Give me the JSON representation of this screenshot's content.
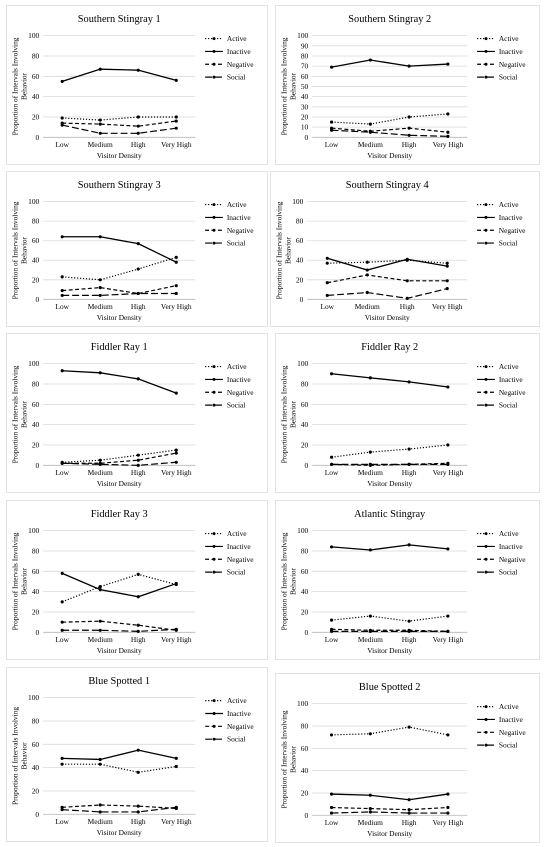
{
  "chart_data": [
    {
      "type": "line",
      "title": "Southern Stingray 1",
      "categories": [
        "Low",
        "Medium",
        "High",
        "Very High"
      ],
      "xlabel": "Visitor Density",
      "ylabel": "Proportion of Intervals Involving Behavior",
      "ylim": [
        0,
        100
      ],
      "yticks": [
        0,
        20,
        40,
        60,
        80,
        100
      ],
      "legend_position": "right",
      "series": [
        {
          "name": "Active",
          "style": "dotted",
          "values": [
            19,
            17,
            20,
            20
          ]
        },
        {
          "name": "Inactive",
          "style": "solid",
          "values": [
            55,
            67,
            66,
            56
          ]
        },
        {
          "name": "Negative",
          "style": "dashed",
          "values": [
            14,
            13,
            11,
            16
          ]
        },
        {
          "name": "Social",
          "style": "longdash",
          "values": [
            12,
            4,
            4,
            9
          ]
        }
      ]
    },
    {
      "type": "line",
      "title": "Southern Stingray 2",
      "categories": [
        "Low",
        "Medium",
        "High",
        "Very High"
      ],
      "xlabel": "Visitor Density",
      "ylabel": "Proportion of Intervals Involving Behavior",
      "ylim": [
        0,
        100
      ],
      "yticks": [
        0,
        10,
        20,
        30,
        40,
        50,
        60,
        70,
        80,
        90,
        100
      ],
      "legend_position": "right",
      "series": [
        {
          "name": "Active",
          "style": "dotted",
          "values": [
            15,
            13,
            20,
            23
          ]
        },
        {
          "name": "Inactive",
          "style": "solid",
          "values": [
            69,
            76,
            70,
            72
          ]
        },
        {
          "name": "Negative",
          "style": "dashed",
          "values": [
            9,
            6,
            9,
            5
          ]
        },
        {
          "name": "Social",
          "style": "longdash",
          "values": [
            7,
            5,
            2,
            1
          ]
        }
      ]
    },
    {
      "type": "line",
      "title": "Southern Stingray 3",
      "categories": [
        "Low",
        "Medium",
        "High",
        "Very High"
      ],
      "xlabel": "Visitor Density",
      "ylabel": "Proportion of Intervals Involving Behavior",
      "ylim": [
        0,
        100
      ],
      "yticks": [
        0,
        20,
        40,
        60,
        80,
        100
      ],
      "legend_position": "right",
      "series": [
        {
          "name": "Active",
          "style": "dotted",
          "values": [
            23,
            20,
            31,
            43
          ]
        },
        {
          "name": "Inactive",
          "style": "solid",
          "values": [
            64,
            64,
            57,
            38
          ]
        },
        {
          "name": "Negative",
          "style": "dashed",
          "values": [
            9,
            12,
            6,
            14
          ]
        },
        {
          "name": "Social",
          "style": "longdash",
          "values": [
            4,
            4,
            6,
            6
          ]
        }
      ]
    },
    {
      "type": "line",
      "title": "Southern Stingray 4",
      "categories": [
        "Low",
        "Medium",
        "High",
        "Very High"
      ],
      "xlabel": "Visitor Density",
      "ylabel": "Proportion of Intervals Involving Behavior",
      "ylim": [
        0,
        100
      ],
      "yticks": [
        0,
        20,
        40,
        60,
        80,
        100
      ],
      "legend_position": "right",
      "series": [
        {
          "name": "Active",
          "style": "dotted",
          "values": [
            37,
            38,
            40,
            37
          ]
        },
        {
          "name": "Inactive",
          "style": "solid",
          "values": [
            42,
            30,
            41,
            34
          ]
        },
        {
          "name": "Negative",
          "style": "dashed",
          "values": [
            17,
            25,
            19,
            19
          ]
        },
        {
          "name": "Social",
          "style": "longdash",
          "values": [
            4,
            7,
            1,
            11
          ]
        }
      ]
    },
    {
      "type": "line",
      "title": "Fiddler Ray 1",
      "categories": [
        "Low",
        "Medium",
        "High",
        "Very High"
      ],
      "xlabel": "Visitor Density",
      "ylabel": "Proportion of Intervals Involving Behavior",
      "ylim": [
        0,
        100
      ],
      "yticks": [
        0,
        20,
        40,
        60,
        80,
        100
      ],
      "legend_position": "right",
      "series": [
        {
          "name": "Active",
          "style": "dotted",
          "values": [
            3,
            5,
            10,
            15
          ]
        },
        {
          "name": "Inactive",
          "style": "solid",
          "values": [
            93,
            91,
            85,
            71
          ]
        },
        {
          "name": "Negative",
          "style": "dashed",
          "values": [
            2,
            2,
            5,
            12
          ]
        },
        {
          "name": "Social",
          "style": "longdash",
          "values": [
            2,
            1,
            0,
            3
          ]
        }
      ]
    },
    {
      "type": "line",
      "title": "Fiddler Ray 2",
      "categories": [
        "Low",
        "Medium",
        "High",
        "Very High"
      ],
      "xlabel": "Visitor Density",
      "ylabel": "Proportion of Intervals Involving Behavior",
      "ylim": [
        0,
        100
      ],
      "yticks": [
        0,
        20,
        40,
        60,
        80,
        100
      ],
      "legend_position": "right",
      "series": [
        {
          "name": "Active",
          "style": "dotted",
          "values": [
            8,
            13,
            16,
            20
          ]
        },
        {
          "name": "Inactive",
          "style": "solid",
          "values": [
            90,
            86,
            82,
            77
          ]
        },
        {
          "name": "Negative",
          "style": "dashed",
          "values": [
            1,
            0,
            1,
            2
          ]
        },
        {
          "name": "Social",
          "style": "longdash",
          "values": [
            1,
            1,
            1,
            1
          ]
        }
      ]
    },
    {
      "type": "line",
      "title": "Fiddler Ray 3",
      "categories": [
        "Low",
        "Medium",
        "High",
        "Very High"
      ],
      "xlabel": "Visitor Density",
      "ylabel": "Proportion of Intervals Involving Behavior",
      "ylim": [
        0,
        100
      ],
      "yticks": [
        0,
        20,
        40,
        60,
        80,
        100
      ],
      "legend_position": "right",
      "series": [
        {
          "name": "Active",
          "style": "dotted",
          "values": [
            30,
            45,
            57,
            47
          ]
        },
        {
          "name": "Inactive",
          "style": "solid",
          "values": [
            58,
            42,
            35,
            48
          ]
        },
        {
          "name": "Negative",
          "style": "dashed",
          "values": [
            10,
            11,
            7,
            2
          ]
        },
        {
          "name": "Social",
          "style": "longdash",
          "values": [
            2,
            2,
            1,
            3
          ]
        }
      ]
    },
    {
      "type": "line",
      "title": "Atlantic Stingray",
      "categories": [
        "Low",
        "Medium",
        "High",
        "Very High"
      ],
      "xlabel": "Visitor Density",
      "ylabel": "Proportion of Intervals Involving Behavior",
      "ylim": [
        0,
        100
      ],
      "yticks": [
        0,
        20,
        40,
        60,
        80,
        100
      ],
      "legend_position": "right",
      "series": [
        {
          "name": "Active",
          "style": "dotted",
          "values": [
            12,
            16,
            11,
            16
          ]
        },
        {
          "name": "Inactive",
          "style": "solid",
          "values": [
            84,
            81,
            86,
            82
          ]
        },
        {
          "name": "Negative",
          "style": "dashed",
          "values": [
            3,
            2,
            2,
            1
          ]
        },
        {
          "name": "Social",
          "style": "longdash",
          "values": [
            1,
            1,
            1,
            1
          ]
        }
      ]
    },
    {
      "type": "line",
      "title": "Blue Spotted 1",
      "categories": [
        "Low",
        "Medium",
        "High",
        "Very High"
      ],
      "xlabel": "Visitor Density",
      "ylabel": "Proportion of Intervals Involving Behavior",
      "ylim": [
        0,
        100
      ],
      "yticks": [
        0,
        20,
        40,
        60,
        80,
        100
      ],
      "legend_position": "right",
      "series": [
        {
          "name": "Active",
          "style": "dotted",
          "values": [
            43,
            43,
            36,
            41
          ]
        },
        {
          "name": "Inactive",
          "style": "solid",
          "values": [
            48,
            47,
            55,
            48
          ]
        },
        {
          "name": "Negative",
          "style": "dashed",
          "values": [
            6,
            8,
            7,
            5
          ]
        },
        {
          "name": "Social",
          "style": "longdash",
          "values": [
            4,
            2,
            2,
            6
          ]
        }
      ]
    },
    {
      "type": "line",
      "title": "Blue Spotted 2",
      "categories": [
        "Low",
        "Medium",
        "High",
        "Very High"
      ],
      "xlabel": "Visitor Density",
      "ylabel": "Proportion of Intervals Involving Behavior",
      "ylim": [
        0,
        100
      ],
      "yticks": [
        0,
        20,
        40,
        60,
        80,
        100
      ],
      "legend_position": "right",
      "series": [
        {
          "name": "Active",
          "style": "dotted",
          "values": [
            72,
            73,
            79,
            72
          ]
        },
        {
          "name": "Inactive",
          "style": "solid",
          "values": [
            19,
            18,
            14,
            19
          ]
        },
        {
          "name": "Negative",
          "style": "dashed",
          "values": [
            7,
            6,
            5,
            7
          ]
        },
        {
          "name": "Social",
          "style": "longdash",
          "values": [
            2,
            3,
            2,
            2
          ]
        }
      ]
    }
  ]
}
